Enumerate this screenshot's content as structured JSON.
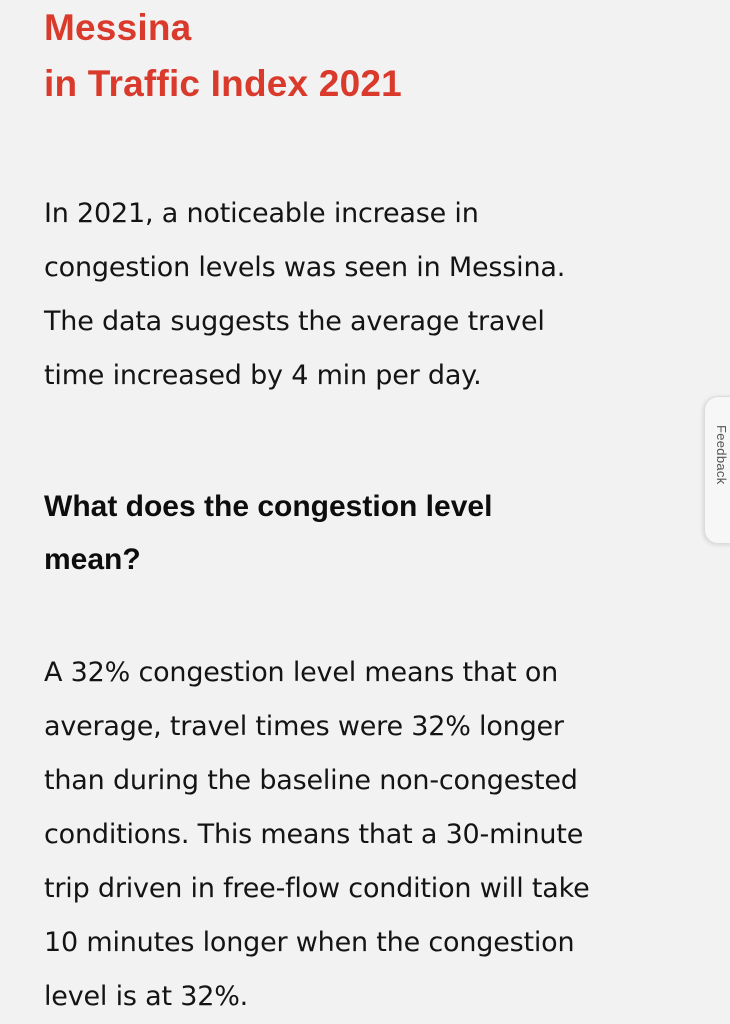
{
  "article": {
    "title_lines": [
      "Messina",
      "in Traffic Index 2021"
    ],
    "intro_lines": [
      "In 2021, a noticeable increase in",
      "congestion levels was seen in Messina.",
      "The data suggests the average travel",
      "time increased by 4 min per day."
    ],
    "heading_lines": [
      "What does the congestion level",
      "mean?"
    ],
    "body_lines": [
      "A 32% congestion level means that on",
      "average, travel times were 32% longer",
      "than during the baseline non-congested",
      "conditions. This means that a 30-minute",
      "trip driven in free-flow condition will take",
      "10 minutes longer when the congestion",
      "level is at 32%."
    ]
  },
  "feedback": {
    "label": "Feedback"
  },
  "colors": {
    "title": "#d93a2b",
    "background": "#f2f2f2",
    "text": "#141414"
  }
}
